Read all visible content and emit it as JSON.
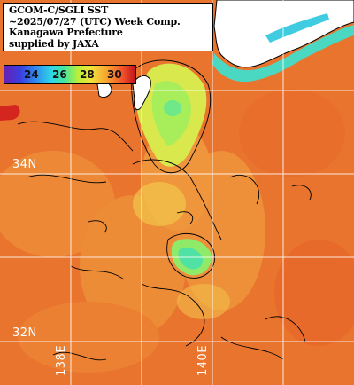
{
  "title": {
    "lines": [
      "GCOM-C/SGLI SST",
      "~2025/07/27 (UTC) Week Comp.",
      "Kanagawa Prefecture",
      "supplied by JAXA"
    ]
  },
  "colorbar": {
    "ticks": [
      "24",
      "26",
      "28",
      "30"
    ]
  },
  "grid_labels": {
    "lat_34": "34N",
    "lat_32": "32N",
    "lon_138": "138E",
    "lon_140": "140E"
  },
  "colors": {
    "sea_warm": "#e8742e",
    "land": "#ffffff",
    "coast": "#000000",
    "grid": "#ffffff"
  }
}
